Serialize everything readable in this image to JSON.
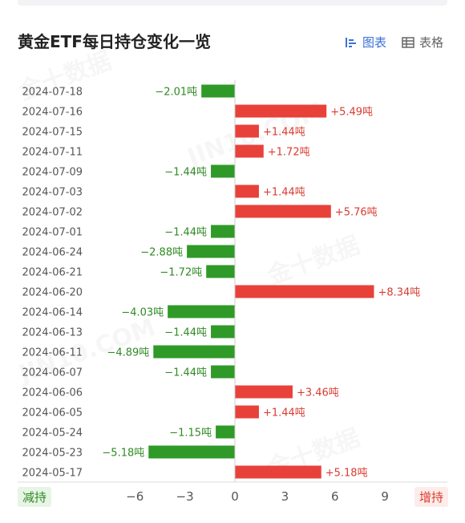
{
  "header": {
    "title": "黄金ETF每日持仓变化一览",
    "view_chart_label": "图表",
    "view_table_label": "表格"
  },
  "axis_badges": {
    "left": "减持",
    "right": "增持"
  },
  "watermark": {
    "brand_cn": "金十数据",
    "brand_en": "JIN10.COM"
  },
  "colors": {
    "increase": "#e8413a",
    "decrease": "#2f9a27",
    "increase_text": "#d93c30",
    "decrease_text": "#2f8a24",
    "accent": "#3a6fd8"
  },
  "chart_data": {
    "type": "bar",
    "orientation": "horizontal",
    "title": "黄金ETF每日持仓变化一览",
    "unit": "吨",
    "categories": [
      "2024-07-18",
      "2024-07-16",
      "2024-07-15",
      "2024-07-11",
      "2024-07-09",
      "2024-07-03",
      "2024-07-02",
      "2024-07-01",
      "2024-06-24",
      "2024-06-21",
      "2024-06-20",
      "2024-06-14",
      "2024-06-13",
      "2024-06-11",
      "2024-06-07",
      "2024-06-06",
      "2024-06-05",
      "2024-05-24",
      "2024-05-23",
      "2024-05-17"
    ],
    "values": [
      -2.01,
      5.49,
      1.44,
      1.72,
      -1.44,
      1.44,
      5.76,
      -1.44,
      -2.88,
      -1.72,
      8.34,
      -4.03,
      -1.44,
      -4.89,
      -1.44,
      3.46,
      1.44,
      -1.15,
      -5.18,
      5.18
    ],
    "data_labels": [
      "−2.01吨",
      "+5.49吨",
      "+1.44吨",
      "+1.72吨",
      "−1.44吨",
      "+1.44吨",
      "+5.76吨",
      "−1.44吨",
      "−2.88吨",
      "−1.72吨",
      "+8.34吨",
      "−4.03吨",
      "−1.44吨",
      "−4.89吨",
      "−1.44吨",
      "+3.46吨",
      "+1.44吨",
      "−1.15吨",
      "−5.18吨",
      "+5.18吨"
    ],
    "xticks": [
      -6,
      -3,
      0,
      3,
      6,
      9
    ],
    "xtick_labels": [
      "−6",
      "−3",
      "0",
      "3",
      "6",
      "9"
    ],
    "xlim": [
      -6,
      12
    ],
    "grid": false,
    "legend": "none"
  }
}
